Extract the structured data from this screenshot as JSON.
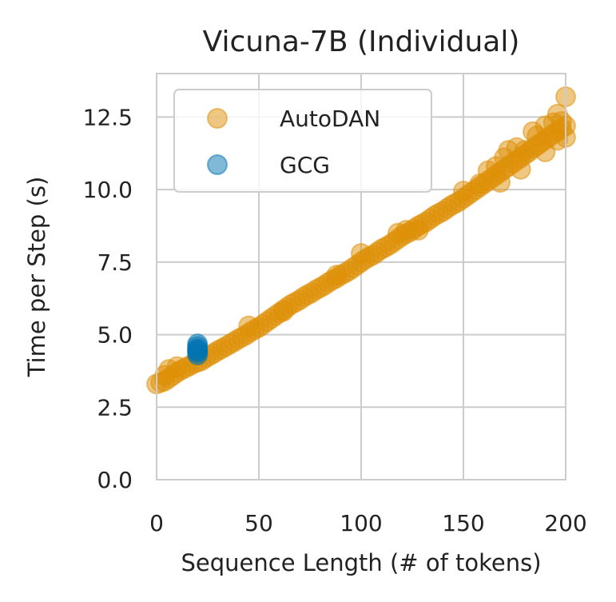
{
  "chart_data": {
    "type": "scatter",
    "title": "Vicuna-7B (Individual)",
    "xlabel": "Sequence Length (# of tokens)",
    "ylabel": "Time per Step (s)",
    "xlim": [
      0,
      200
    ],
    "ylim": [
      0,
      14
    ],
    "xticks": [
      0,
      50,
      100,
      150,
      200
    ],
    "yticks": [
      0.0,
      2.5,
      5.0,
      7.5,
      10.0,
      12.5
    ],
    "xtick_labels": [
      "0",
      "50",
      "100",
      "150",
      "200"
    ],
    "ytick_labels": [
      "0.0",
      "2.5",
      "5.0",
      "7.5",
      "10.0",
      "12.5"
    ],
    "grid": true,
    "legend_position": "top-left",
    "series": [
      {
        "name": "AutoDAN",
        "color": "#de8f05",
        "points": [
          [
            0,
            3.3
          ],
          [
            2,
            3.35
          ],
          [
            4,
            3.4
          ],
          [
            6,
            3.5
          ],
          [
            8,
            3.6
          ],
          [
            10,
            3.7
          ],
          [
            12,
            3.78
          ],
          [
            14,
            3.85
          ],
          [
            16,
            3.92
          ],
          [
            18,
            4.0
          ],
          [
            20,
            4.05
          ],
          [
            22,
            4.1
          ],
          [
            24,
            4.2
          ],
          [
            26,
            4.28
          ],
          [
            28,
            4.36
          ],
          [
            30,
            4.45
          ],
          [
            32,
            4.52
          ],
          [
            34,
            4.6
          ],
          [
            36,
            4.68
          ],
          [
            38,
            4.76
          ],
          [
            40,
            4.85
          ],
          [
            42,
            4.92
          ],
          [
            44,
            5.0
          ],
          [
            46,
            5.1
          ],
          [
            48,
            5.18
          ],
          [
            50,
            5.25
          ],
          [
            52,
            5.35
          ],
          [
            54,
            5.45
          ],
          [
            56,
            5.55
          ],
          [
            58,
            5.65
          ],
          [
            60,
            5.75
          ],
          [
            62,
            5.85
          ],
          [
            64,
            5.95
          ],
          [
            66,
            6.05
          ],
          [
            68,
            6.12
          ],
          [
            70,
            6.2
          ],
          [
            72,
            6.3
          ],
          [
            74,
            6.38
          ],
          [
            76,
            6.45
          ],
          [
            78,
            6.55
          ],
          [
            80,
            6.62
          ],
          [
            82,
            6.7
          ],
          [
            84,
            6.8
          ],
          [
            86,
            6.88
          ],
          [
            88,
            6.95
          ],
          [
            90,
            7.05
          ],
          [
            92,
            7.12
          ],
          [
            94,
            7.2
          ],
          [
            96,
            7.3
          ],
          [
            98,
            7.4
          ],
          [
            100,
            7.5
          ],
          [
            102,
            7.6
          ],
          [
            104,
            7.68
          ],
          [
            106,
            7.75
          ],
          [
            108,
            7.85
          ],
          [
            110,
            7.95
          ],
          [
            112,
            8.02
          ],
          [
            114,
            8.1
          ],
          [
            116,
            8.2
          ],
          [
            118,
            8.3
          ],
          [
            120,
            8.4
          ],
          [
            122,
            8.48
          ],
          [
            124,
            8.55
          ],
          [
            126,
            8.65
          ],
          [
            128,
            8.75
          ],
          [
            130,
            8.82
          ],
          [
            132,
            8.9
          ],
          [
            134,
            9.0
          ],
          [
            136,
            9.1
          ],
          [
            138,
            9.18
          ],
          [
            140,
            9.25
          ],
          [
            142,
            9.35
          ],
          [
            144,
            9.45
          ],
          [
            146,
            9.52
          ],
          [
            148,
            9.6
          ],
          [
            150,
            9.7
          ],
          [
            152,
            9.8
          ],
          [
            154,
            9.9
          ],
          [
            156,
            10.0
          ],
          [
            158,
            10.1
          ],
          [
            160,
            10.2
          ],
          [
            162,
            10.3
          ],
          [
            164,
            10.4
          ],
          [
            166,
            10.5
          ],
          [
            168,
            10.6
          ],
          [
            170,
            10.7
          ],
          [
            172,
            10.8
          ],
          [
            174,
            10.9
          ],
          [
            176,
            11.0
          ],
          [
            178,
            11.1
          ],
          [
            180,
            11.2
          ],
          [
            182,
            11.3
          ],
          [
            184,
            11.42
          ],
          [
            186,
            11.52
          ],
          [
            188,
            11.62
          ],
          [
            190,
            11.72
          ],
          [
            192,
            11.82
          ],
          [
            194,
            11.92
          ],
          [
            196,
            12.0
          ],
          [
            198,
            12.1
          ],
          [
            200,
            12.2
          ],
          [
            45,
            5.3
          ],
          [
            62,
            5.8
          ],
          [
            88,
            7.05
          ],
          [
            100,
            7.8
          ],
          [
            118,
            8.5
          ],
          [
            122,
            8.6
          ],
          [
            128,
            8.6
          ],
          [
            150,
            9.95
          ],
          [
            158,
            10.2
          ],
          [
            162,
            10.65
          ],
          [
            166,
            10.8
          ],
          [
            170,
            11.1
          ],
          [
            172,
            11.35
          ],
          [
            176,
            11.45
          ],
          [
            180,
            11.35
          ],
          [
            184,
            12.0
          ],
          [
            186,
            11.85
          ],
          [
            190,
            12.2
          ],
          [
            194,
            12.3
          ],
          [
            196,
            12.6
          ],
          [
            198,
            12.35
          ],
          [
            200,
            13.2
          ],
          [
            200,
            11.8
          ],
          [
            196,
            11.7
          ],
          [
            190,
            11.3
          ],
          [
            178,
            10.7
          ],
          [
            168,
            10.25
          ],
          [
            6,
            3.8
          ],
          [
            4,
            3.6
          ],
          [
            10,
            3.9
          ]
        ]
      },
      {
        "name": "GCG",
        "color": "#0173b2",
        "points": [
          [
            20,
            4.3
          ],
          [
            20,
            4.38
          ],
          [
            20,
            4.42
          ],
          [
            20,
            4.48
          ],
          [
            20,
            4.52
          ],
          [
            20,
            4.6
          ],
          [
            20,
            4.68
          ]
        ]
      }
    ]
  }
}
